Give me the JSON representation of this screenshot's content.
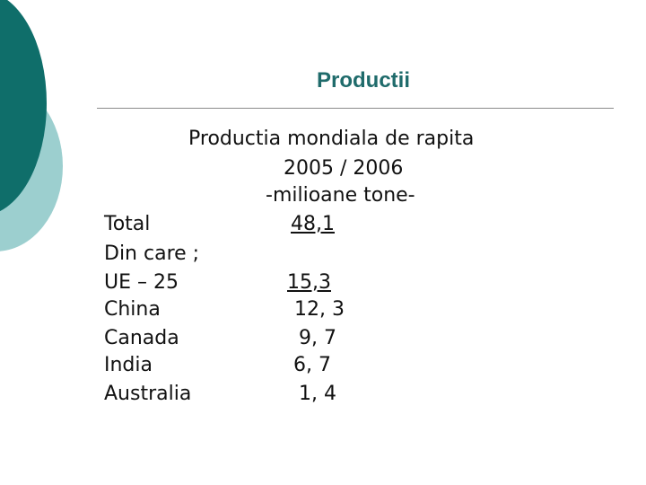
{
  "title": "Productii",
  "subtitle": {
    "line1": "Productia mondiala de rapita",
    "line2": "2005 / 2006",
    "line3": "-milioane tone-"
  },
  "rows": [
    {
      "label": "Total",
      "value": "48,1"
    },
    {
      "label": "Din care ;",
      "value": ""
    },
    {
      "label": "UE – 25",
      "value": "15,3"
    },
    {
      "label": "China",
      "value": "12, 3"
    },
    {
      "label": "Canada",
      "value": "9, 7"
    },
    {
      "label": "India",
      "value": "6, 7"
    },
    {
      "label": "Australia",
      "value": "1, 4"
    }
  ],
  "colors": {
    "title": "#1f6b6b",
    "decor_dark": "#0f6e6a",
    "decor_light": "#9ccfcf"
  }
}
